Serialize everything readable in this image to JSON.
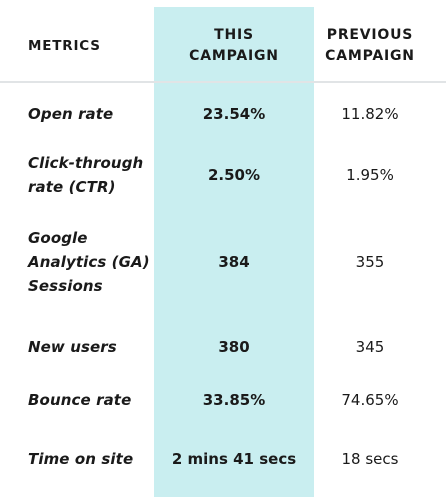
{
  "header": {
    "metrics": "METRICS",
    "this_campaign": "THIS\nCAMPAIGN",
    "previous_campaign": "PREVIOUS\nCAMPAIGN"
  },
  "rows": [
    {
      "metric": "Open rate",
      "this": "23.54%",
      "previous": "11.82%"
    },
    {
      "metric": "Click-through\nrate (CTR)",
      "this": "2.50%",
      "previous": "1.95%"
    },
    {
      "metric": "Google\nAnalytics (GA)\nSessions",
      "this": "384",
      "previous": "355"
    },
    {
      "metric": "New users",
      "this": "380",
      "previous": "345"
    },
    {
      "metric": "Bounce rate",
      "this": "33.85%",
      "previous": "74.65%"
    },
    {
      "metric": "Time on site",
      "this": "2 mins 41 secs",
      "previous": "18 secs"
    }
  ],
  "colors": {
    "highlight": "#c9eef0",
    "divider": "#e1e4e6",
    "text": "#1a1a1a"
  }
}
